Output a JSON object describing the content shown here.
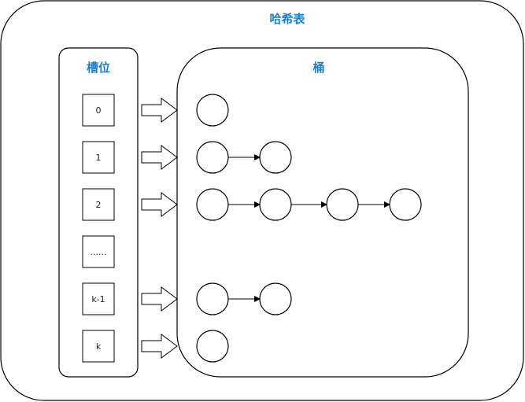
{
  "hash_table": {
    "title": "哈希表"
  },
  "slots_panel": {
    "title": "槽位",
    "slots": [
      {
        "label": "0",
        "bucket_nodes": 1
      },
      {
        "label": "1",
        "bucket_nodes": 2
      },
      {
        "label": "2",
        "bucket_nodes": 4
      },
      {
        "label": "......",
        "bucket_nodes": 0
      },
      {
        "label": "k-1",
        "bucket_nodes": 2
      },
      {
        "label": "k",
        "bucket_nodes": 1
      }
    ]
  },
  "buckets_panel": {
    "title": "桶"
  }
}
